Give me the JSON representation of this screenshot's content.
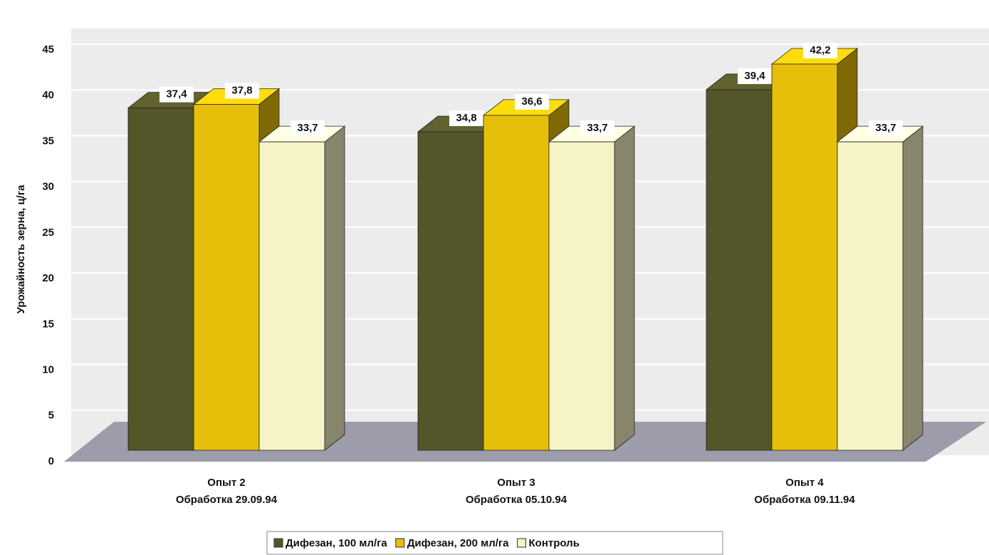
{
  "chart_data": {
    "type": "bar3d",
    "y_label": "Урожайность зерна, ц/га",
    "categories": [
      [
        "Опыт 2",
        "Обработка 29.09.94"
      ],
      [
        "Опыт 3",
        "Обработка 05.10.94"
      ],
      [
        "Опыт 4",
        "Обработка 09.11.94"
      ]
    ],
    "series": [
      {
        "name": "Дифезан, 100 мл/га",
        "color": "#55552a",
        "values": [
          37.4,
          34.8,
          39.4
        ],
        "value_labels": [
          "37,4",
          "34,8",
          "39,4"
        ]
      },
      {
        "name": "Дифезан, 200 мл/га",
        "color": "#e6bf0a",
        "values": [
          37.8,
          36.6,
          42.2
        ],
        "value_labels": [
          "37,8",
          "36,6",
          "42,2"
        ]
      },
      {
        "name": "Контроль",
        "color": "#f6f4c6",
        "values": [
          33.7,
          33.7,
          33.7
        ],
        "value_labels": [
          "33,7",
          "33,7",
          "33,7"
        ]
      }
    ],
    "ylim": [
      0,
      45
    ],
    "yticks": [
      0,
      5,
      10,
      15,
      20,
      25,
      30,
      35,
      40,
      45
    ],
    "grid": true
  }
}
